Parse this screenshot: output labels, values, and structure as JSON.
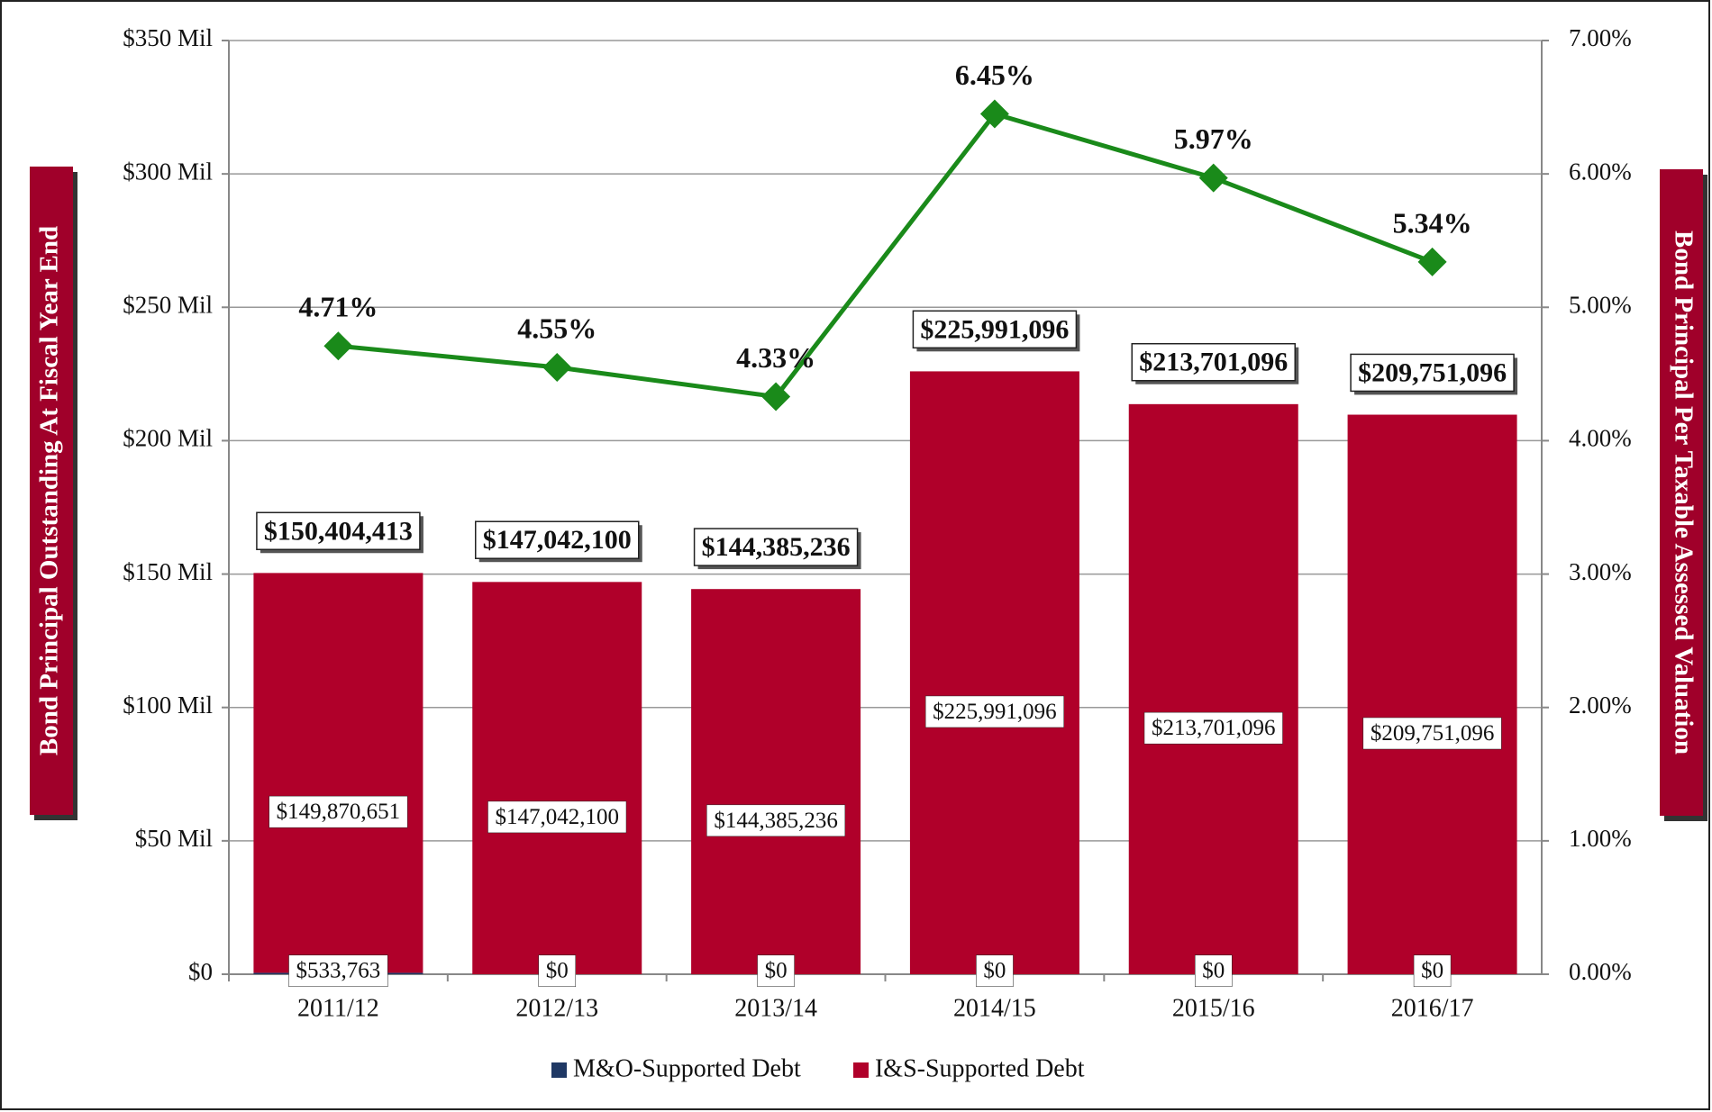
{
  "chart_data": {
    "type": "bar",
    "categories": [
      "2011/12",
      "2012/13",
      "2013/14",
      "2014/15",
      "2015/16",
      "2016/17"
    ],
    "y_label": "Bond Principal Outstanding At Fiscal Year End",
    "y2_label": "Bond Principal Per Taxable Assessed Valuation",
    "series": [
      {
        "name": "M&O-Supported Debt",
        "color": "#1f3864",
        "values": [
          533763,
          0,
          0,
          0,
          0,
          0
        ],
        "value_labels": [
          "$533,763",
          "$0",
          "$0",
          "$0",
          "$0",
          "$0"
        ]
      },
      {
        "name": "I&S-Supported Debt",
        "color": "#b0002a",
        "values": [
          149870651,
          147042100,
          144385236,
          225991096,
          213701096,
          209751096
        ],
        "value_labels": [
          "$149,870,651",
          "$147,042,100",
          "$144,385,236",
          "$225,991,096",
          "$213,701,096",
          "$209,751,096"
        ]
      },
      {
        "type": "line",
        "axis": "y2",
        "color": "#1a8a1a",
        "values": [
          4.71,
          4.55,
          4.33,
          6.45,
          5.97,
          5.34
        ],
        "value_labels": [
          "4.71%",
          "4.55%",
          "4.33%",
          "6.45%",
          "5.97%",
          "5.34%"
        ]
      }
    ],
    "total_labels": [
      "$150,404,413",
      "$147,042,100",
      "$144,385,236",
      "$225,991,096",
      "$213,701,096",
      "$209,751,096"
    ],
    "ylim": [
      0,
      350000000
    ],
    "yticks": [
      {
        "value": 0,
        "label": "$0"
      },
      {
        "value": 50000000,
        "label": "$50 Mil"
      },
      {
        "value": 100000000,
        "label": "$100 Mil"
      },
      {
        "value": 150000000,
        "label": "$150 Mil"
      },
      {
        "value": 200000000,
        "label": "$200 Mil"
      },
      {
        "value": 250000000,
        "label": "$250 Mil"
      },
      {
        "value": 300000000,
        "label": "$300 Mil"
      },
      {
        "value": 350000000,
        "label": "$350 Mil"
      }
    ],
    "y2lim": [
      0,
      7
    ],
    "y2ticks": [
      {
        "value": 0,
        "label": "0.00%"
      },
      {
        "value": 1,
        "label": "1.00%"
      },
      {
        "value": 2,
        "label": "2.00%"
      },
      {
        "value": 3,
        "label": "3.00%"
      },
      {
        "value": 4,
        "label": "4.00%"
      },
      {
        "value": 5,
        "label": "5.00%"
      },
      {
        "value": 6,
        "label": "6.00%"
      },
      {
        "value": 7,
        "label": "7.00%"
      }
    ],
    "grid": true
  }
}
